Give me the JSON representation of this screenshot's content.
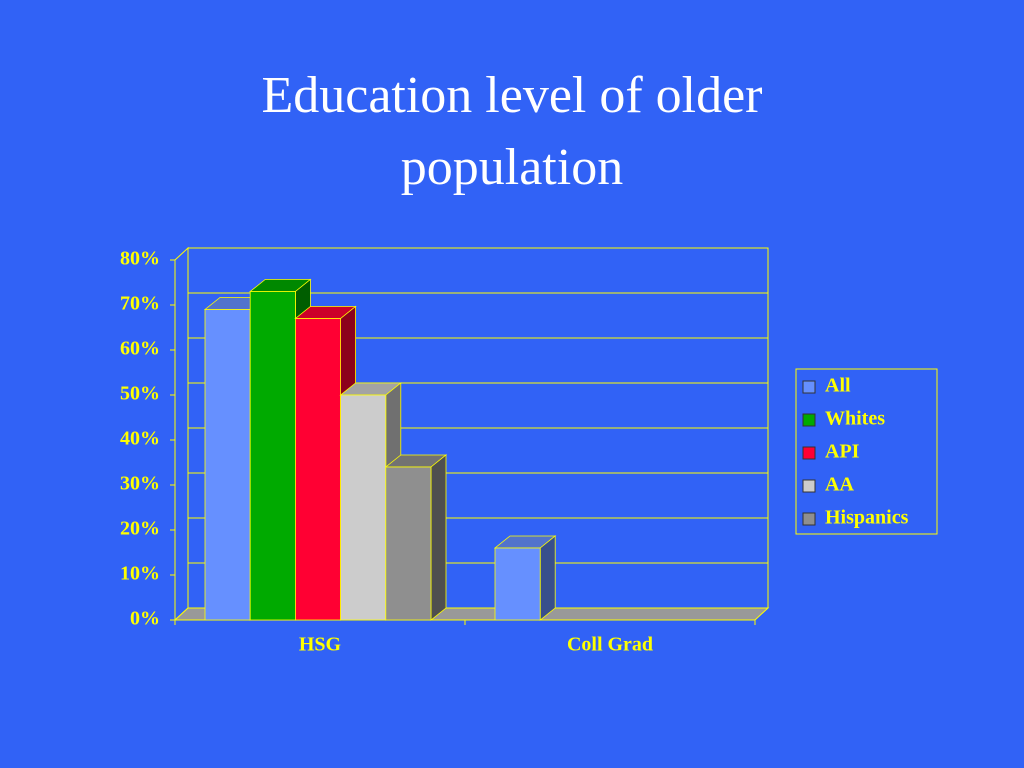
{
  "chart_data": {
    "type": "bar3d",
    "title": "Education level of older population",
    "categories": [
      "HSG",
      "Coll Grad"
    ],
    "series": [
      {
        "name": "All",
        "color": "#6690ff",
        "values": [
          69,
          16
        ]
      },
      {
        "name": "Whites",
        "color": "#00aa00",
        "values": [
          73,
          null
        ]
      },
      {
        "name": "API",
        "color": "#ff0033",
        "values": [
          67,
          null
        ]
      },
      {
        "name": "AA",
        "color": "#cccccc",
        "values": [
          50,
          null
        ]
      },
      {
        "name": "Hispanics",
        "color": "#8f8f8f",
        "values": [
          34,
          null
        ]
      }
    ],
    "ylim": [
      0,
      80
    ],
    "yticks": [
      {
        "value": 0,
        "label": "0%"
      },
      {
        "value": 10,
        "label": "10%"
      },
      {
        "value": 20,
        "label": "20%"
      },
      {
        "value": 30,
        "label": "30%"
      },
      {
        "value": 40,
        "label": "40%"
      },
      {
        "value": 50,
        "label": "50%"
      },
      {
        "value": 60,
        "label": "60%"
      },
      {
        "value": 70,
        "label": "70%"
      },
      {
        "value": 80,
        "label": "80%"
      }
    ],
    "grid": true,
    "legend": "right"
  }
}
